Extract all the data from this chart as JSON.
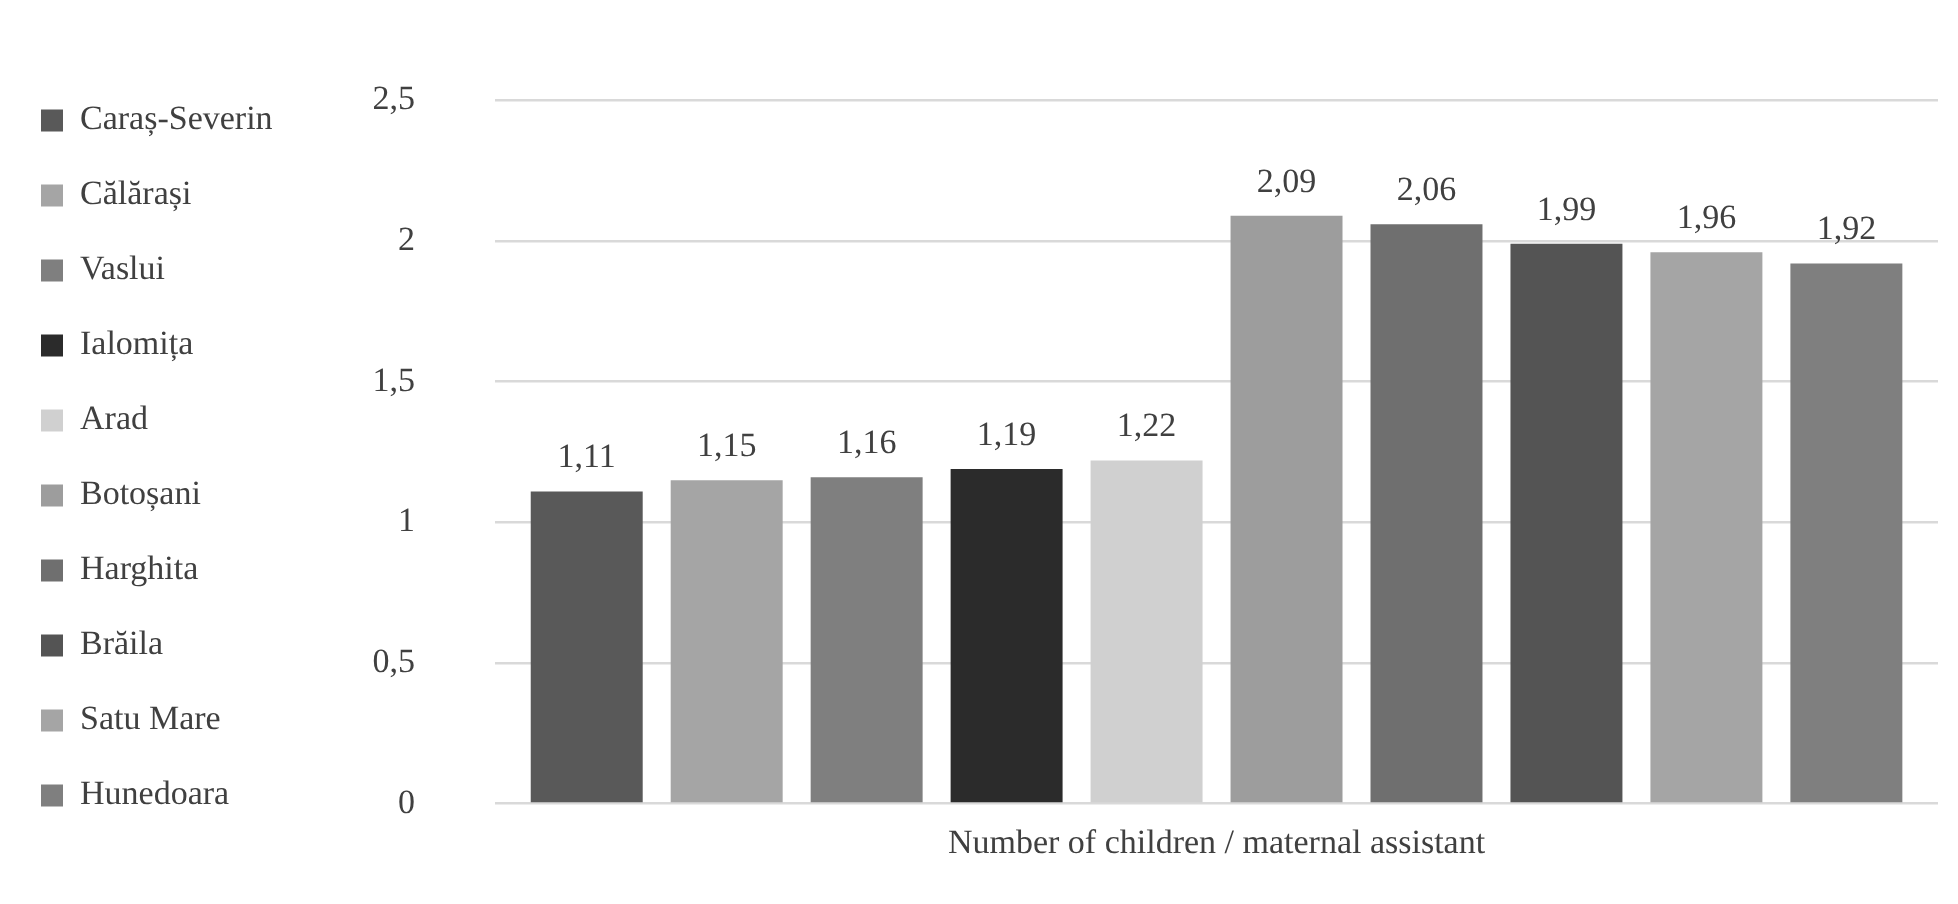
{
  "chart_data": {
    "type": "bar",
    "categories": [
      "Number of children / maternal assistant"
    ],
    "series": [
      {
        "name": "Caraș-Severin",
        "color": "#595959",
        "values": [
          1.11
        ],
        "value_labels": [
          "1,11"
        ]
      },
      {
        "name": "Călărași",
        "color": "#a5a5a5",
        "values": [
          1.15
        ],
        "value_labels": [
          "1,15"
        ]
      },
      {
        "name": "Vaslui",
        "color": "#7f7f7f",
        "values": [
          1.16
        ],
        "value_labels": [
          "1,16"
        ]
      },
      {
        "name": "Ialomița",
        "color": "#2b2b2b",
        "values": [
          1.19
        ],
        "value_labels": [
          "1,19"
        ]
      },
      {
        "name": "Arad",
        "color": "#d0d0d0",
        "values": [
          1.22
        ],
        "value_labels": [
          "1,22"
        ]
      },
      {
        "name": "Botoșani",
        "color": "#9d9d9d",
        "values": [
          2.09
        ],
        "value_labels": [
          "2,09"
        ]
      },
      {
        "name": "Harghita",
        "color": "#6f6f6f",
        "values": [
          2.06
        ],
        "value_labels": [
          "2,06"
        ]
      },
      {
        "name": "Brăila",
        "color": "#545454",
        "values": [
          1.99
        ],
        "value_labels": [
          "1,99"
        ]
      },
      {
        "name": "Satu Mare",
        "color": "#a5a5a5",
        "values": [
          1.96
        ],
        "value_labels": [
          "1,96"
        ]
      },
      {
        "name": "Hunedoara",
        "color": "#7f7f7f",
        "values": [
          1.92
        ],
        "value_labels": [
          "1,92"
        ]
      }
    ],
    "ylim": [
      0,
      2.5
    ],
    "yticks": [
      0,
      {
        "value": 0.5,
        "label": "0,5"
      },
      1,
      {
        "value": 1.5,
        "label": "1,5"
      },
      2,
      {
        "value": 2.5,
        "label": "2,5"
      }
    ],
    "grid": "y",
    "legend": "left"
  }
}
